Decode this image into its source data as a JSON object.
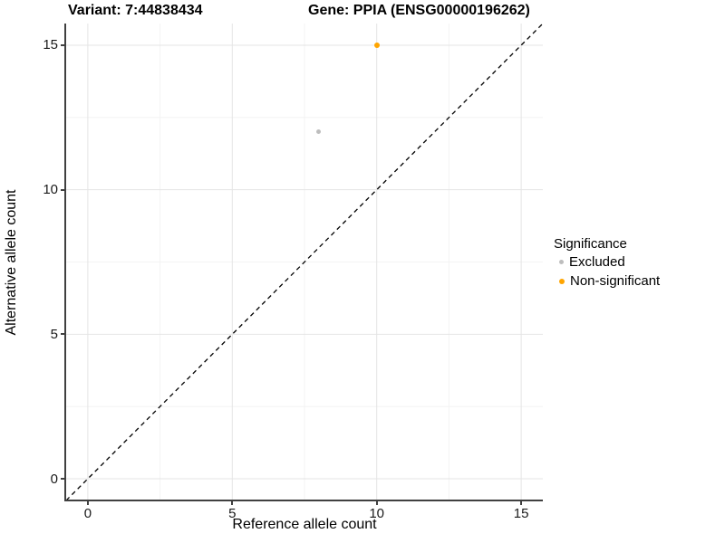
{
  "titles": {
    "variant": "Variant: 7:44838434",
    "gene": "Gene: PPIA (ENSG00000196262)"
  },
  "legend": {
    "title": "Significance"
  },
  "chart_data": {
    "type": "scatter",
    "title": "Variant: 7:44838434 / Gene: PPIA (ENSG00000196262)",
    "xlabel": "Reference allele count",
    "ylabel": "Alternative allele count",
    "xlim": [
      -0.75,
      15.75
    ],
    "ylim": [
      -0.75,
      15.75
    ],
    "x_ticks": [
      0,
      5,
      10,
      15
    ],
    "y_ticks": [
      0,
      5,
      10,
      15
    ],
    "x_minor_ticks": [
      2.5,
      7.5,
      12.5
    ],
    "y_minor_ticks": [
      2.5,
      7.5,
      12.5
    ],
    "grid": "major and minor gridlines on",
    "legend_title": "Significance",
    "legend_position": "right",
    "series": [
      {
        "name": "Excluded",
        "color": "#BDBDBD",
        "marker_px": 5,
        "points": [
          {
            "x": 8,
            "y": 12
          }
        ]
      },
      {
        "name": "Non-significant",
        "color": "#FFA500",
        "marker_px": 6,
        "points": [
          {
            "x": 10,
            "y": 15
          }
        ]
      }
    ],
    "reference_line": {
      "equation": "y = x",
      "style": "dashed",
      "color": "#000000"
    }
  },
  "colors": {
    "grid_major": "#E4E4E4",
    "grid_minor": "#F3F3F3",
    "axis_line": "#404040",
    "tick_text": "#1A1A1A",
    "excluded": "#BDBDBD",
    "non_significant": "#FFA500"
  }
}
